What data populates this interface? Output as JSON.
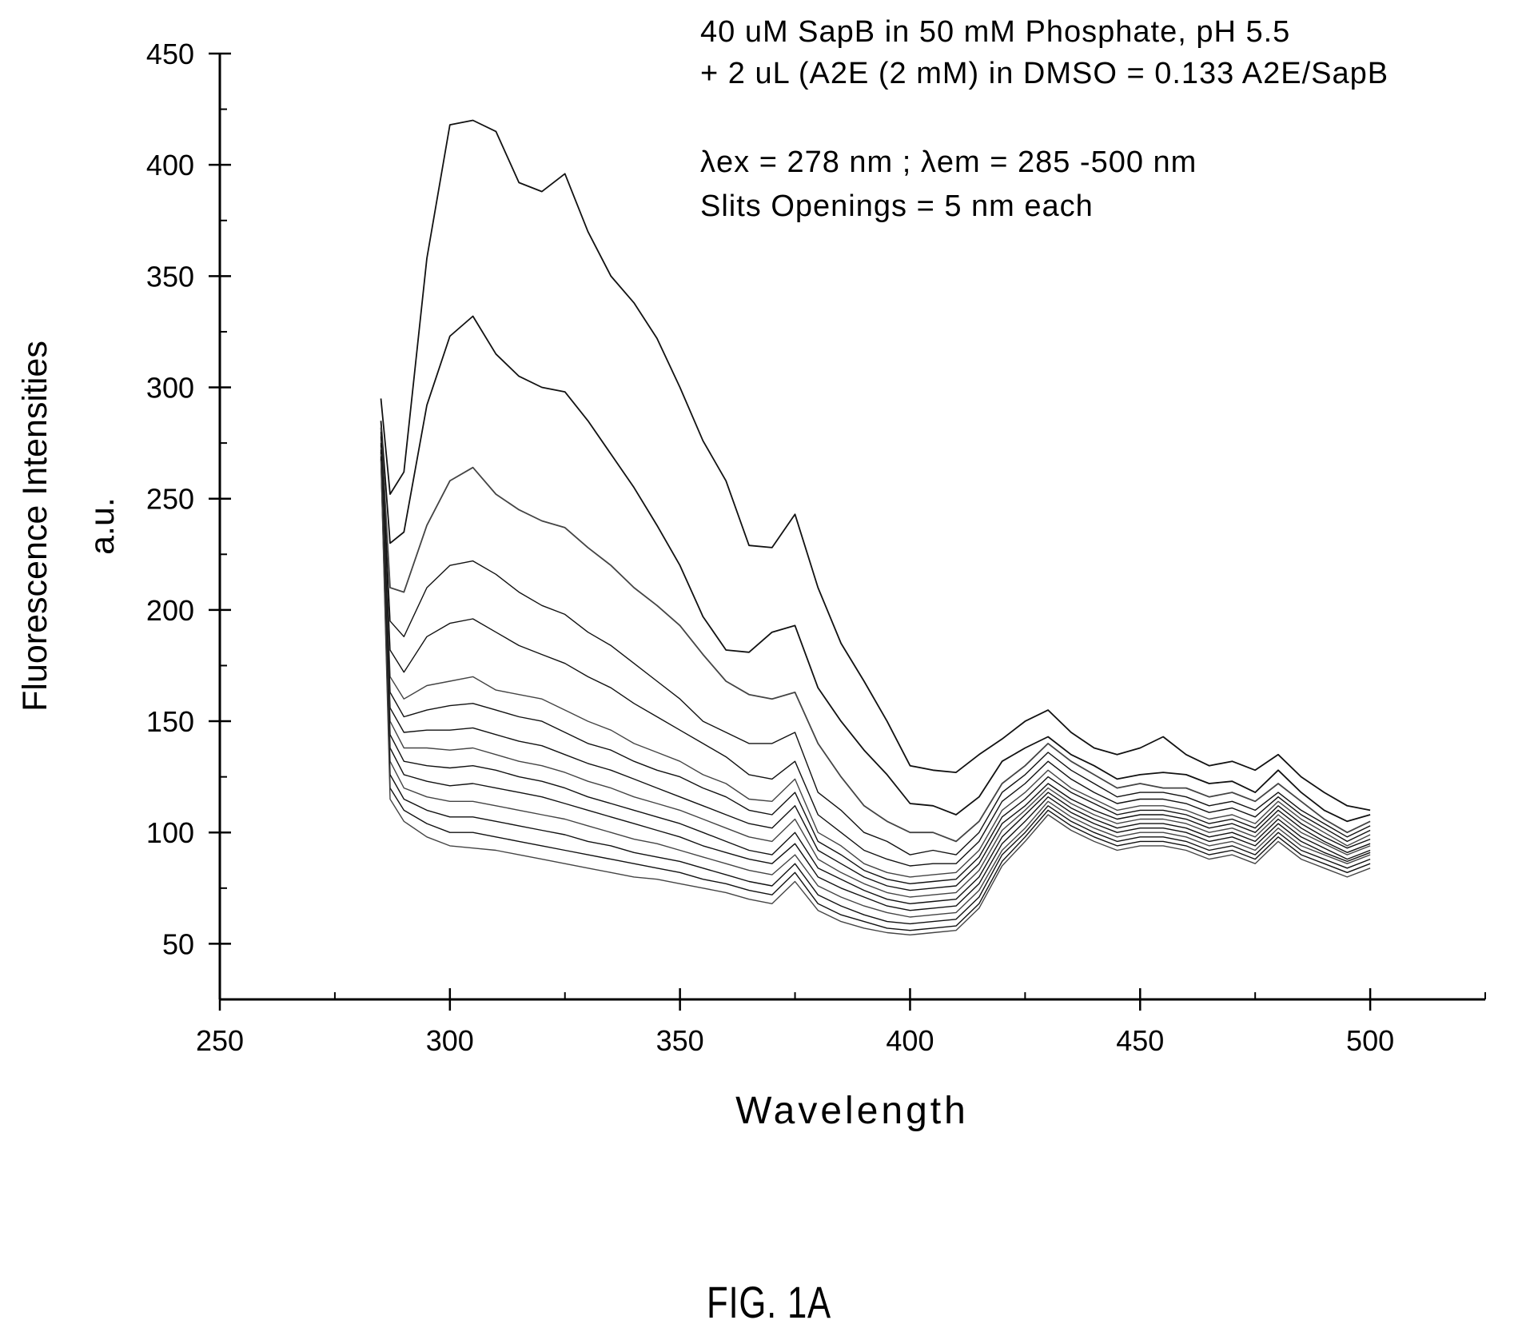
{
  "figure_label": "FIG. 1A",
  "chart_data": {
    "type": "line",
    "xlabel": "Wavelength",
    "ylabel_lines": [
      "Fluorescence Intensities",
      "a.u."
    ],
    "xlim": [
      250,
      525
    ],
    "ylim": [
      25,
      450
    ],
    "x_ticks": [
      250,
      300,
      350,
      400,
      450,
      500
    ],
    "y_ticks": [
      50,
      100,
      150,
      200,
      250,
      300,
      350,
      400,
      450
    ],
    "x_minor_step": 25,
    "y_minor_step": 25,
    "grid": false,
    "legend": "none",
    "annotations": [
      "40 uM SapB in 50 mM Phosphate, pH 5.5",
      "+ 2 uL (A2E (2 mM) in DMSO = 0.133 A2E/SapB",
      "λex = 278 nm ; λem = 285 -500 nm",
      "Slits Openings = 5 nm each"
    ],
    "x": [
      285,
      287,
      290,
      295,
      300,
      305,
      310,
      315,
      320,
      325,
      330,
      335,
      340,
      345,
      350,
      355,
      360,
      365,
      370,
      375,
      380,
      385,
      390,
      395,
      400,
      405,
      410,
      415,
      420,
      425,
      430,
      435,
      440,
      445,
      450,
      455,
      460,
      465,
      470,
      475,
      480,
      485,
      490,
      495,
      500
    ],
    "series": [
      {
        "values": [
          295,
          252,
          262,
          358,
          418,
          420,
          415,
          392,
          388,
          396,
          370,
          350,
          338,
          322,
          300,
          276,
          258,
          229,
          228,
          243,
          210,
          185,
          168,
          150,
          130,
          128,
          127,
          135,
          142,
          150,
          155,
          145,
          138,
          135,
          138,
          143,
          135,
          130,
          132,
          128,
          135,
          125,
          118,
          112,
          110
        ]
      },
      {
        "values": [
          285,
          230,
          235,
          292,
          323,
          332,
          315,
          305,
          300,
          298,
          285,
          270,
          255,
          238,
          220,
          197,
          182,
          181,
          190,
          193,
          165,
          150,
          137,
          126,
          113,
          112,
          108,
          116,
          132,
          138,
          143,
          135,
          130,
          124,
          126,
          127,
          126,
          122,
          123,
          118,
          128,
          118,
          110,
          105,
          108
        ]
      },
      {
        "values": [
          282,
          210,
          208,
          238,
          258,
          264,
          252,
          245,
          240,
          237,
          228,
          220,
          210,
          202,
          193,
          180,
          168,
          162,
          160,
          163,
          140,
          125,
          112,
          105,
          100,
          100,
          96,
          105,
          122,
          130,
          140,
          132,
          126,
          120,
          122,
          120,
          120,
          116,
          118,
          114,
          122,
          114,
          106,
          100,
          105
        ]
      },
      {
        "values": [
          280,
          195,
          188,
          210,
          220,
          222,
          216,
          208,
          202,
          198,
          190,
          184,
          176,
          168,
          160,
          150,
          145,
          140,
          140,
          145,
          118,
          110,
          100,
          96,
          90,
          92,
          90,
          100,
          118,
          126,
          136,
          128,
          122,
          116,
          118,
          118,
          116,
          112,
          114,
          110,
          118,
          110,
          104,
          98,
          103
        ]
      },
      {
        "values": [
          278,
          182,
          172,
          188,
          194,
          196,
          190,
          184,
          180,
          176,
          170,
          165,
          158,
          152,
          146,
          140,
          134,
          126,
          124,
          132,
          108,
          100,
          92,
          88,
          85,
          86,
          86,
          96,
          114,
          122,
          132,
          124,
          118,
          113,
          115,
          115,
          113,
          109,
          111,
          107,
          116,
          108,
          102,
          96,
          101
        ]
      },
      {
        "values": [
          276,
          170,
          160,
          166,
          168,
          170,
          164,
          162,
          160,
          155,
          150,
          146,
          140,
          136,
          132,
          126,
          122,
          115,
          114,
          124,
          100,
          94,
          86,
          82,
          80,
          81,
          82,
          92,
          110,
          118,
          128,
          120,
          115,
          110,
          112,
          112,
          110,
          106,
          108,
          104,
          114,
          106,
          100,
          94,
          99
        ]
      },
      {
        "values": [
          275,
          163,
          152,
          155,
          157,
          158,
          155,
          152,
          150,
          145,
          140,
          137,
          132,
          128,
          125,
          120,
          116,
          110,
          108,
          118,
          96,
          90,
          83,
          79,
          77,
          78,
          79,
          89,
          107,
          115,
          125,
          118,
          113,
          108,
          110,
          110,
          108,
          104,
          106,
          102,
          112,
          104,
          98,
          93,
          97
        ]
      },
      {
        "values": [
          274,
          156,
          145,
          146,
          146,
          147,
          144,
          141,
          139,
          135,
          131,
          128,
          124,
          120,
          116,
          112,
          108,
          104,
          102,
          112,
          92,
          86,
          80,
          76,
          74,
          75,
          76,
          86,
          104,
          112,
          122,
          115,
          110,
          106,
          108,
          108,
          106,
          102,
          104,
          100,
          110,
          102,
          96,
          91,
          95
        ]
      },
      {
        "values": [
          273,
          150,
          138,
          138,
          137,
          138,
          135,
          132,
          130,
          127,
          123,
          120,
          116,
          113,
          110,
          106,
          102,
          98,
          96,
          106,
          88,
          82,
          77,
          73,
          71,
          72,
          73,
          83,
          101,
          110,
          120,
          113,
          108,
          104,
          106,
          106,
          104,
          100,
          102,
          98,
          108,
          100,
          95,
          90,
          94
        ]
      },
      {
        "values": [
          272,
          144,
          132,
          130,
          129,
          130,
          128,
          125,
          123,
          120,
          116,
          113,
          110,
          107,
          104,
          100,
          96,
          92,
          90,
          100,
          84,
          79,
          74,
          70,
          68,
          69,
          70,
          80,
          98,
          108,
          118,
          111,
          106,
          102,
          104,
          104,
          102,
          98,
          100,
          96,
          106,
          98,
          93,
          88,
          92
        ]
      },
      {
        "values": [
          271,
          138,
          126,
          123,
          121,
          122,
          120,
          118,
          116,
          113,
          110,
          107,
          104,
          101,
          98,
          94,
          91,
          88,
          86,
          95,
          80,
          75,
          71,
          67,
          65,
          66,
          67,
          77,
          95,
          105,
          116,
          109,
          104,
          100,
          102,
          102,
          100,
          96,
          98,
          94,
          104,
          96,
          91,
          87,
          91
        ]
      },
      {
        "values": [
          270,
          132,
          120,
          116,
          114,
          114,
          112,
          110,
          108,
          106,
          103,
          100,
          97,
          95,
          92,
          89,
          86,
          83,
          81,
          90,
          76,
          71,
          67,
          64,
          62,
          63,
          64,
          74,
          92,
          102,
          114,
          107,
          102,
          98,
          100,
          100,
          98,
          94,
          96,
          92,
          102,
          94,
          90,
          86,
          90
        ]
      },
      {
        "values": [
          269,
          126,
          115,
          110,
          107,
          107,
          105,
          103,
          101,
          99,
          96,
          94,
          91,
          89,
          87,
          84,
          81,
          78,
          76,
          86,
          72,
          67,
          63,
          60,
          59,
          60,
          61,
          71,
          90,
          100,
          112,
          105,
          100,
          96,
          98,
          98,
          96,
          92,
          94,
          90,
          100,
          92,
          88,
          84,
          88
        ]
      },
      {
        "values": [
          268,
          120,
          110,
          104,
          100,
          100,
          98,
          96,
          94,
          92,
          90,
          88,
          86,
          84,
          82,
          79,
          77,
          74,
          72,
          82,
          68,
          63,
          60,
          57,
          56,
          57,
          58,
          68,
          87,
          98,
          110,
          103,
          98,
          94,
          96,
          96,
          94,
          90,
          92,
          88,
          98,
          90,
          86,
          82,
          86
        ]
      },
      {
        "values": [
          267,
          115,
          105,
          98,
          94,
          93,
          92,
          90,
          88,
          86,
          84,
          82,
          80,
          79,
          77,
          75,
          73,
          70,
          68,
          78,
          65,
          60,
          57,
          55,
          54,
          55,
          56,
          66,
          85,
          96,
          108,
          101,
          96,
          92,
          94,
          94,
          92,
          88,
          90,
          86,
          96,
          88,
          84,
          80,
          84
        ]
      }
    ]
  }
}
